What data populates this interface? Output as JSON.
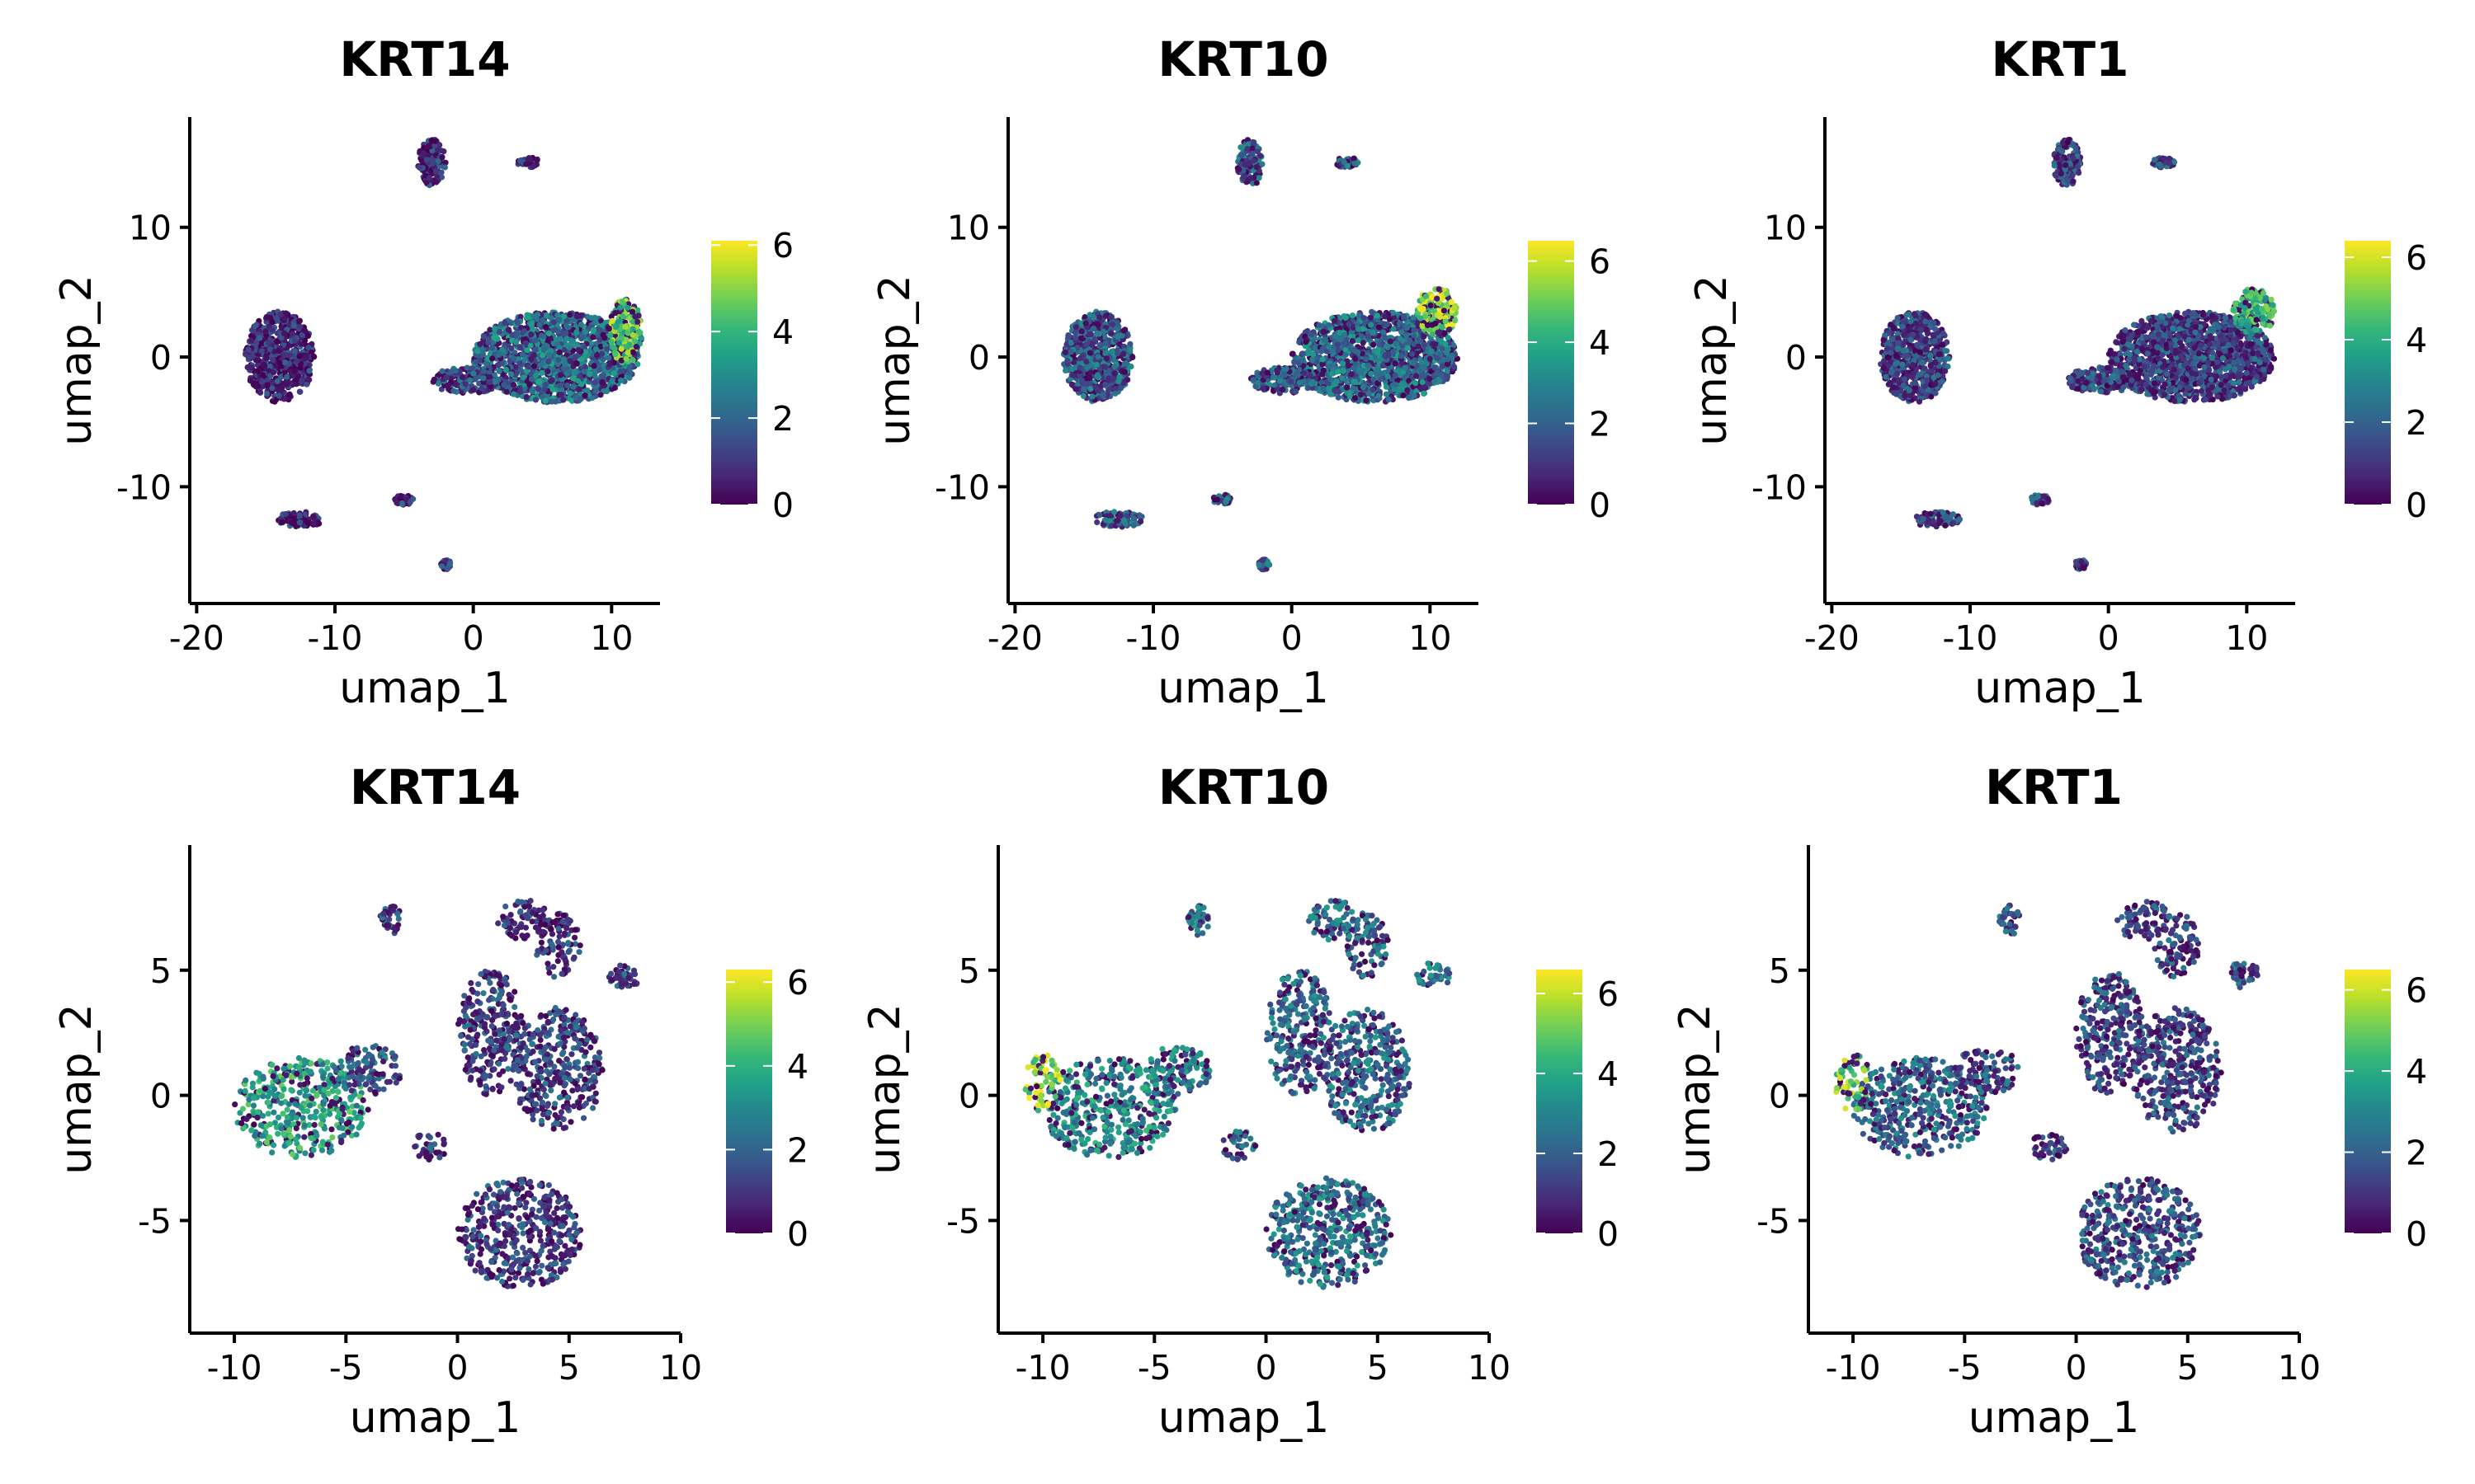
{
  "colorscale": {
    "name": "viridis",
    "stops": [
      "#440154",
      "#482777",
      "#3e4989",
      "#31688e",
      "#26828e",
      "#1f9e89",
      "#35b779",
      "#6ece58",
      "#b5de2b",
      "#fde725"
    ]
  },
  "chart_data": [
    {
      "type": "scatter",
      "title": "KRT14",
      "xlabel": "umap_1",
      "ylabel": "umap_2",
      "xlim": [
        -20.5,
        13.5
      ],
      "ylim": [
        -19,
        18.5
      ],
      "xticks": [
        -20,
        -10,
        0,
        10
      ],
      "yticks": [
        -10,
        0,
        10
      ],
      "color_range": [
        0,
        6.1
      ],
      "colorbar_ticks": [
        0,
        2,
        4,
        6
      ],
      "color_scale": "viridis",
      "clusters": [
        {
          "label": "main-right",
          "cx": 6,
          "cy": 0,
          "rx": 6,
          "ry": 3.5,
          "level": 2.3
        },
        {
          "label": "main-right-edge",
          "cx": 11,
          "cy": 2,
          "rx": 1.2,
          "ry": 2.5,
          "level": 4.5
        },
        {
          "label": "mid-strand",
          "cx": -0.5,
          "cy": -1.8,
          "rx": 2.5,
          "ry": 1,
          "level": 1.4
        },
        {
          "label": "left-cluster",
          "cx": -14,
          "cy": 0,
          "rx": 2.5,
          "ry": 3.5,
          "level": 0.7
        },
        {
          "label": "top-small",
          "cx": -3,
          "cy": 15,
          "rx": 1,
          "ry": 1.8,
          "level": 0.8
        },
        {
          "label": "top-right-small",
          "cx": 4,
          "cy": 15,
          "rx": 0.8,
          "ry": 0.4,
          "level": 0.8
        },
        {
          "label": "bottom-left-small",
          "cx": -12.5,
          "cy": -12.5,
          "rx": 1.8,
          "ry": 0.6,
          "level": 0.8
        },
        {
          "label": "bottom-mid-small",
          "cx": -5,
          "cy": -11,
          "rx": 0.7,
          "ry": 0.4,
          "level": 0.8
        },
        {
          "label": "bottom-dot",
          "cx": -2,
          "cy": -16,
          "rx": 0.4,
          "ry": 0.4,
          "level": 0.8
        }
      ]
    },
    {
      "type": "scatter",
      "title": "KRT10",
      "xlabel": "umap_1",
      "ylabel": "umap_2",
      "xlim": [
        -20.5,
        13.5
      ],
      "ylim": [
        -19,
        18.5
      ],
      "xticks": [
        -20,
        -10,
        0,
        10
      ],
      "yticks": [
        -10,
        0,
        10
      ],
      "color_range": [
        0,
        6.5
      ],
      "colorbar_ticks": [
        0,
        2,
        4,
        6
      ],
      "color_scale": "viridis",
      "clusters": [
        {
          "label": "main-right",
          "cx": 6,
          "cy": 0,
          "rx": 6,
          "ry": 3.5,
          "level": 2.4
        },
        {
          "label": "main-right-edge",
          "cx": 10.5,
          "cy": 3.5,
          "rx": 1.5,
          "ry": 1.8,
          "level": 5.2
        },
        {
          "label": "mid-strand",
          "cx": -0.5,
          "cy": -1.8,
          "rx": 2.5,
          "ry": 1,
          "level": 2
        },
        {
          "label": "left-cluster",
          "cx": -14,
          "cy": 0,
          "rx": 2.5,
          "ry": 3.5,
          "level": 2
        },
        {
          "label": "top-small",
          "cx": -3,
          "cy": 15,
          "rx": 1,
          "ry": 1.8,
          "level": 2
        },
        {
          "label": "top-right-small",
          "cx": 4,
          "cy": 15,
          "rx": 0.8,
          "ry": 0.4,
          "level": 2
        },
        {
          "label": "bottom-left-small",
          "cx": -12.5,
          "cy": -12.5,
          "rx": 1.8,
          "ry": 0.6,
          "level": 2
        },
        {
          "label": "bottom-mid-small",
          "cx": -5,
          "cy": -11,
          "rx": 0.7,
          "ry": 0.4,
          "level": 2
        },
        {
          "label": "bottom-dot",
          "cx": -2,
          "cy": -16,
          "rx": 0.4,
          "ry": 0.4,
          "level": 2
        }
      ]
    },
    {
      "type": "scatter",
      "title": "KRT1",
      "xlabel": "umap_1",
      "ylabel": "umap_2",
      "xlim": [
        -20.5,
        13.5
      ],
      "ylim": [
        -19,
        18.5
      ],
      "xticks": [
        -20,
        -10,
        0,
        10
      ],
      "yticks": [
        -10,
        0,
        10
      ],
      "color_range": [
        0,
        6.4
      ],
      "colorbar_ticks": [
        0,
        2,
        4,
        6
      ],
      "color_scale": "viridis",
      "clusters": [
        {
          "label": "main-right",
          "cx": 6,
          "cy": 0,
          "rx": 6,
          "ry": 3.5,
          "level": 1.4
        },
        {
          "label": "main-right-edge",
          "cx": 10.5,
          "cy": 3.5,
          "rx": 1.5,
          "ry": 1.8,
          "level": 4
        },
        {
          "label": "mid-strand",
          "cx": -0.5,
          "cy": -1.8,
          "rx": 2.5,
          "ry": 1,
          "level": 1.4
        },
        {
          "label": "left-cluster",
          "cx": -14,
          "cy": 0,
          "rx": 2.5,
          "ry": 3.5,
          "level": 1.4
        },
        {
          "label": "top-small",
          "cx": -3,
          "cy": 15,
          "rx": 1,
          "ry": 1.8,
          "level": 1.4
        },
        {
          "label": "top-right-small",
          "cx": 4,
          "cy": 15,
          "rx": 0.8,
          "ry": 0.4,
          "level": 1.4
        },
        {
          "label": "bottom-left-small",
          "cx": -12.5,
          "cy": -12.5,
          "rx": 1.8,
          "ry": 0.6,
          "level": 1.4
        },
        {
          "label": "bottom-mid-small",
          "cx": -5,
          "cy": -11,
          "rx": 0.7,
          "ry": 0.4,
          "level": 1.4
        },
        {
          "label": "bottom-dot",
          "cx": -2,
          "cy": -16,
          "rx": 0.4,
          "ry": 0.4,
          "level": 1.4
        }
      ]
    },
    {
      "type": "scatter",
      "title": "KRT14",
      "xlabel": "umap_1",
      "ylabel": "umap_2",
      "xlim": [
        -12,
        10
      ],
      "ylim": [
        -9.5,
        10
      ],
      "xticks": [
        -10,
        -5,
        0,
        5,
        10
      ],
      "yticks": [
        -5,
        0,
        5
      ],
      "color_range": [
        0,
        6.3
      ],
      "colorbar_ticks": [
        0,
        2,
        4,
        6
      ],
      "color_scale": "viridis",
      "clusters": [
        {
          "label": "left-wing",
          "cx": -7,
          "cy": -0.5,
          "rx": 3,
          "ry": 2,
          "level": 3.6
        },
        {
          "label": "left-wing-tail",
          "cx": -4,
          "cy": 1,
          "rx": 1.5,
          "ry": 1,
          "level": 2
        },
        {
          "label": "bottom-cluster",
          "cx": 2.8,
          "cy": -5.5,
          "rx": 2.8,
          "ry": 2.2,
          "level": 1.2
        },
        {
          "label": "center-upper",
          "cx": 1.5,
          "cy": 2.5,
          "rx": 1.5,
          "ry": 2.5,
          "level": 1.3
        },
        {
          "label": "center-right",
          "cx": 4.5,
          "cy": 1,
          "rx": 2,
          "ry": 2.5,
          "level": 1.3
        },
        {
          "label": "top-center",
          "cx": 3,
          "cy": 7,
          "rx": 1.2,
          "ry": 0.8,
          "level": 1
        },
        {
          "label": "top-right",
          "cx": 4.5,
          "cy": 6,
          "rx": 1,
          "ry": 1.3,
          "level": 1
        },
        {
          "label": "top-left-small",
          "cx": -3,
          "cy": 7,
          "rx": 0.5,
          "ry": 0.6,
          "level": 1.5
        },
        {
          "label": "right-small",
          "cx": 7.5,
          "cy": 4.8,
          "rx": 0.8,
          "ry": 0.5,
          "level": 1.5
        },
        {
          "label": "mid-small",
          "cx": -1.2,
          "cy": -2,
          "rx": 0.8,
          "ry": 0.6,
          "level": 1.3
        }
      ]
    },
    {
      "type": "scatter",
      "title": "KRT10",
      "xlabel": "umap_1",
      "ylabel": "umap_2",
      "xlim": [
        -12,
        10
      ],
      "ylim": [
        -9.5,
        10
      ],
      "xticks": [
        -10,
        -5,
        0,
        5,
        10
      ],
      "yticks": [
        -5,
        0,
        5
      ],
      "color_range": [
        0,
        6.6
      ],
      "colorbar_ticks": [
        0,
        2,
        4,
        6
      ],
      "color_scale": "viridis",
      "clusters": [
        {
          "label": "left-wing",
          "cx": -7,
          "cy": -0.5,
          "rx": 3,
          "ry": 2,
          "level": 3.2
        },
        {
          "label": "left-wing-tip",
          "cx": -10,
          "cy": 0.5,
          "rx": 0.8,
          "ry": 1.2,
          "level": 5.5
        },
        {
          "label": "left-wing-tail",
          "cx": -4,
          "cy": 1,
          "rx": 1.5,
          "ry": 1,
          "level": 2.8
        },
        {
          "label": "bottom-cluster",
          "cx": 2.8,
          "cy": -5.5,
          "rx": 2.8,
          "ry": 2.2,
          "level": 2.6
        },
        {
          "label": "center-upper",
          "cx": 1.5,
          "cy": 2.5,
          "rx": 1.5,
          "ry": 2.5,
          "level": 2.3
        },
        {
          "label": "center-right",
          "cx": 4.5,
          "cy": 1,
          "rx": 2,
          "ry": 2.5,
          "level": 2.3
        },
        {
          "label": "top-center",
          "cx": 3,
          "cy": 7,
          "rx": 1.2,
          "ry": 0.8,
          "level": 2.3
        },
        {
          "label": "top-right",
          "cx": 4.5,
          "cy": 6,
          "rx": 1,
          "ry": 1.3,
          "level": 2.3
        },
        {
          "label": "top-left-small",
          "cx": -3,
          "cy": 7,
          "rx": 0.5,
          "ry": 0.6,
          "level": 2.8
        },
        {
          "label": "right-small",
          "cx": 7.5,
          "cy": 4.8,
          "rx": 0.8,
          "ry": 0.5,
          "level": 2.6
        },
        {
          "label": "mid-small",
          "cx": -1.2,
          "cy": -2,
          "rx": 0.8,
          "ry": 0.6,
          "level": 2.3
        }
      ]
    },
    {
      "type": "scatter",
      "title": "KRT1",
      "xlabel": "umap_1",
      "ylabel": "umap_2",
      "xlim": [
        -12,
        10
      ],
      "ylim": [
        -9.5,
        10
      ],
      "xticks": [
        -10,
        -5,
        0,
        5,
        10
      ],
      "yticks": [
        -5,
        0,
        5
      ],
      "color_range": [
        0,
        6.5
      ],
      "colorbar_ticks": [
        0,
        2,
        4,
        6
      ],
      "color_scale": "viridis",
      "clusters": [
        {
          "label": "left-wing",
          "cx": -7,
          "cy": -0.5,
          "rx": 3,
          "ry": 2,
          "level": 2.2
        },
        {
          "label": "left-wing-tip",
          "cx": -10,
          "cy": 0.5,
          "rx": 0.8,
          "ry": 1.2,
          "level": 5
        },
        {
          "label": "left-wing-tail",
          "cx": -4,
          "cy": 1,
          "rx": 1.5,
          "ry": 1,
          "level": 1.8
        },
        {
          "label": "bottom-cluster",
          "cx": 2.8,
          "cy": -5.5,
          "rx": 2.8,
          "ry": 2.2,
          "level": 1.8
        },
        {
          "label": "center-upper",
          "cx": 1.5,
          "cy": 2.5,
          "rx": 1.5,
          "ry": 2.5,
          "level": 1.5
        },
        {
          "label": "center-right",
          "cx": 4.5,
          "cy": 1,
          "rx": 2,
          "ry": 2.5,
          "level": 1.5
        },
        {
          "label": "top-center",
          "cx": 3,
          "cy": 7,
          "rx": 1.2,
          "ry": 0.8,
          "level": 1.5
        },
        {
          "label": "top-right",
          "cx": 4.5,
          "cy": 6,
          "rx": 1,
          "ry": 1.3,
          "level": 1.5
        },
        {
          "label": "top-left-small",
          "cx": -3,
          "cy": 7,
          "rx": 0.5,
          "ry": 0.6,
          "level": 1.8
        },
        {
          "label": "right-small",
          "cx": 7.5,
          "cy": 4.8,
          "rx": 0.8,
          "ry": 0.5,
          "level": 1.8
        },
        {
          "label": "mid-small",
          "cx": -1.2,
          "cy": -2,
          "rx": 0.8,
          "ry": 0.6,
          "level": 1.5
        }
      ]
    }
  ]
}
